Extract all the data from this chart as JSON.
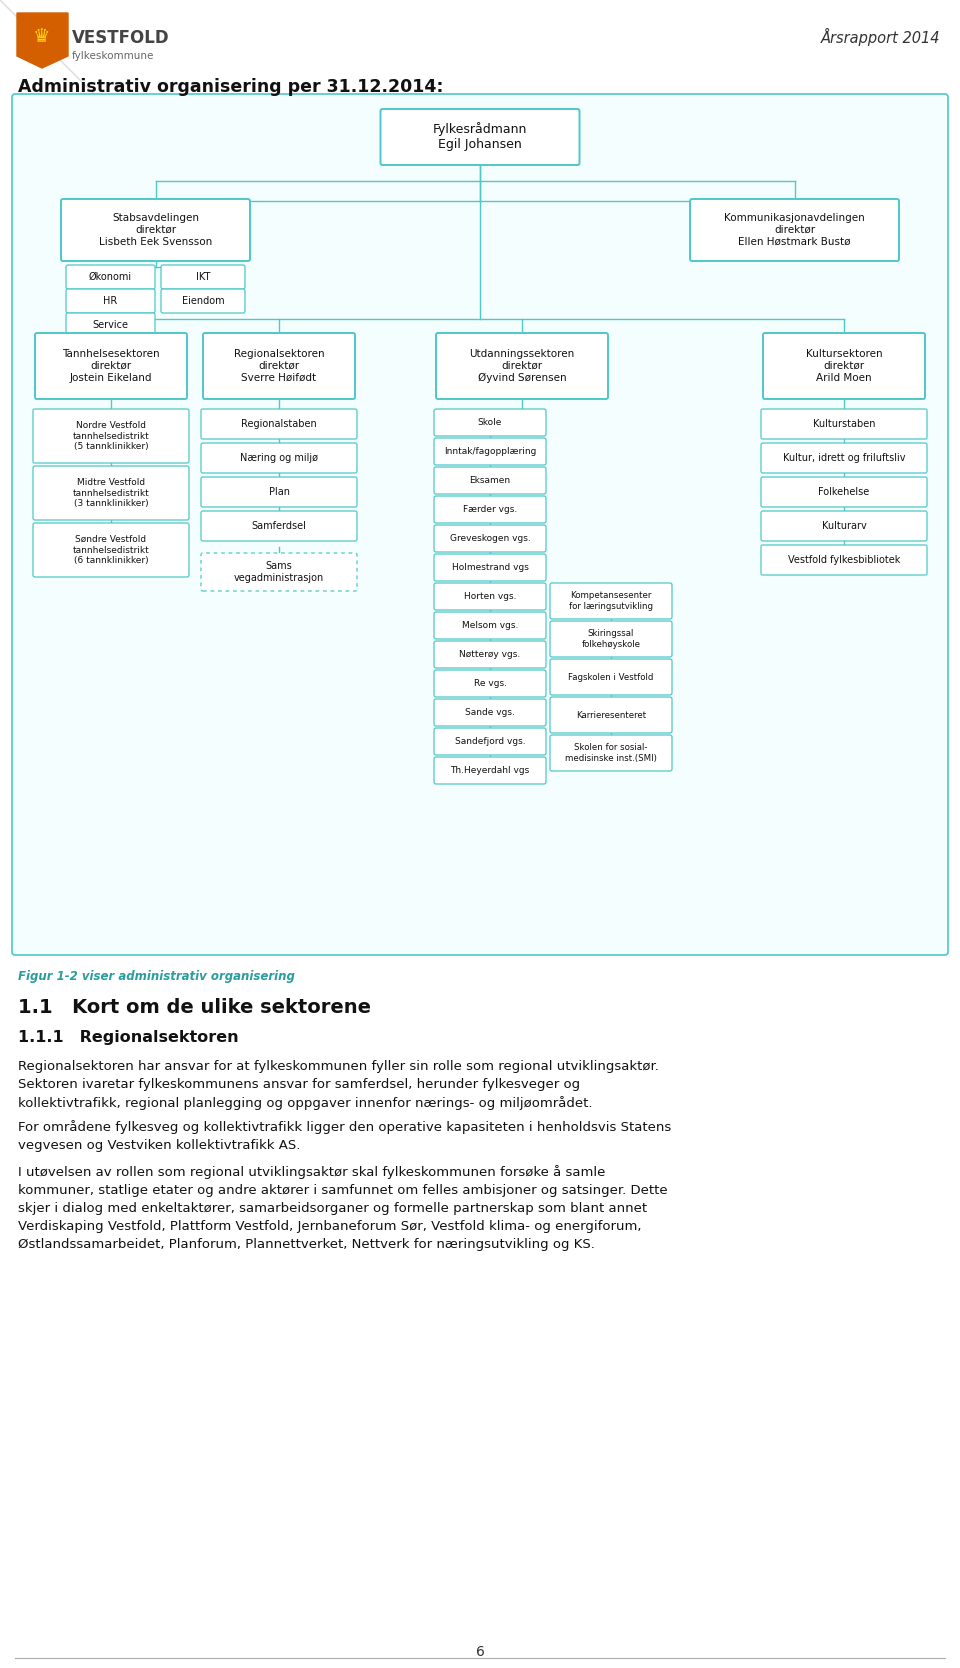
{
  "title_header": "Administrativ organisering per 31.12.2014:",
  "arsrapport_text": "Årsrapport 2014",
  "bg_color": "#ffffff",
  "box_edge_color": "#4EC8C8",
  "box_fill_color": "#ffffff",
  "chart_bg_color": "#f5fefe",
  "text_color": "#111111",
  "fig_caption": "Figur 1-2 viser administrativ organisering",
  "section_title": "1.1 Kort om de ulike sektorene",
  "subsection_title": "1.1.1 Regionalsektoren",
  "paragraph1": "Regionalsektoren har ansvar for at fylkeskommunen fyller sin rolle som regional utviklingsaktør.\nSektoren ivaretar fylkeskommunens ansvar for samferdsel, herunder fylkesveger og\nkollektivtrafikk, regional planlegging og oppgaver innenfor nærings- og miljøområdet.",
  "paragraph2": "For områdene fylkesveg og kollektivtrafikk ligger den operative kapasiteten i henholdsvis Statens\nvegvesen og Vestviken kollektivtrafikk AS.",
  "paragraph3": "I utøvelsen av rollen som regional utviklingsaktør skal fylkeskommunen forsøke å samle\nkommuner, statlige etater og andre aktører i samfunnet om felles ambisjoner og satsinger. Dette\nskjer i dialog med enkeltaktører, samarbeidsorganer og formelle partnerskap som blant annet\nVerdiskaping Vestfold, Plattform Vestfold, Jernbaneforum Sør, Vestfold klima- og energiforum,\nØstlandssamarbeidet, Planforum, Plannettverket, Nettverk for næringsutvikling og KS.",
  "page_number": "6",
  "logo_text1": "VESTFOLD",
  "logo_text2": "fylkeskommune",
  "shield_color": "#D45F00",
  "crown_color": "#FFD700",
  "header_line_color": "#cccccc",
  "caption_color": "#2a9d9d",
  "gray_text": "#555555",
  "link_color": "#4EC8C8"
}
